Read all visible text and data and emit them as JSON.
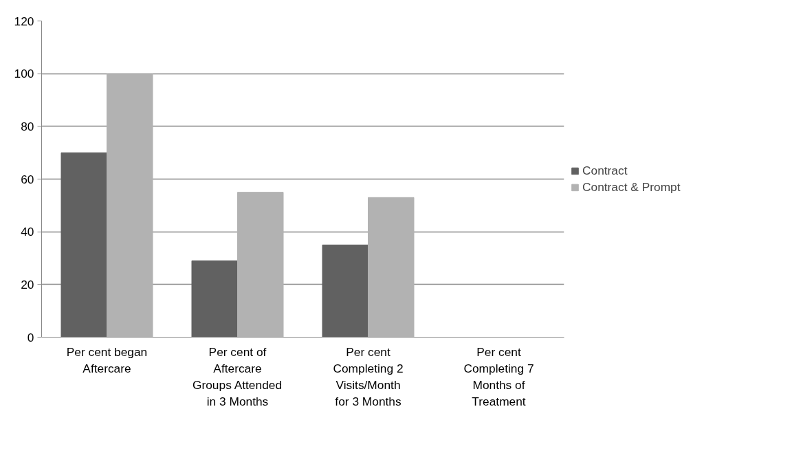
{
  "chart_data": {
    "type": "bar",
    "categories": [
      "Per cent began Aftercare",
      "Per cent of Aftercare Groups Attended in 3 Months",
      "Per cent Completing 2 Visits/Month for 3 Months",
      "Per cent Completing 7 Months of Treatment"
    ],
    "series": [
      {
        "name": "Contract",
        "color": "#616161",
        "values": [
          70,
          29,
          35,
          0
        ]
      },
      {
        "name": "Contract & Prompt",
        "color": "#b2b2b2",
        "values": [
          100,
          55,
          53,
          0
        ]
      }
    ],
    "ylim": [
      0,
      120
    ],
    "yticks": [
      0,
      20,
      40,
      60,
      80,
      100,
      120
    ],
    "grid": "y",
    "legend": "right"
  }
}
